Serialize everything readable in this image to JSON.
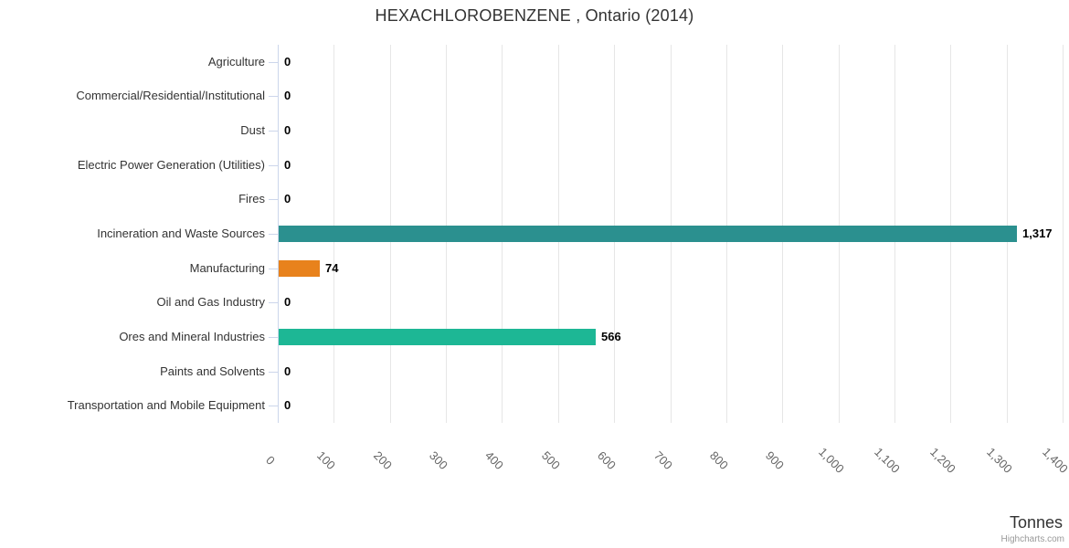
{
  "header": {
    "title": "HEXACHLOROBENZENE , Ontario (2014)"
  },
  "axis": {
    "title": "Tonnes"
  },
  "credits": {
    "label": "Highcharts.com"
  },
  "colors": {
    "teal": "#2b908f",
    "orange": "#e8821c",
    "green": "#1db795",
    "gridline": "#e6e6e6",
    "axis_line": "#ccd6eb",
    "category_label": "#333333",
    "tick_label": "#666666",
    "value_label": "#000000",
    "credits_text": "#999999"
  },
  "chart_data": {
    "type": "bar",
    "orientation": "horizontal",
    "title": "HEXACHLOROBENZENE , Ontario (2014)",
    "categories": [
      "Agriculture",
      "Commercial/Residential/Institutional",
      "Dust",
      "Electric Power Generation (Utilities)",
      "Fires",
      "Incineration and Waste Sources",
      "Manufacturing",
      "Oil and Gas Industry",
      "Ores and Mineral Industries",
      "Paints and Solvents",
      "Transportation and Mobile Equipment"
    ],
    "values": [
      0,
      0,
      0,
      0,
      0,
      1317,
      74,
      0,
      566,
      0,
      0
    ],
    "value_labels": [
      "0",
      "0",
      "0",
      "0",
      "0",
      "1,317",
      "74",
      "0",
      "566",
      "0",
      "0"
    ],
    "point_colors": [
      "#2b908f",
      "#2b908f",
      "#2b908f",
      "#2b908f",
      "#2b908f",
      "#2b908f",
      "#e8821c",
      "#2b908f",
      "#1db795",
      "#2b908f",
      "#2b908f"
    ],
    "xlabel": "Tonnes",
    "xlim": [
      0,
      1400
    ],
    "x_tick_interval": 100,
    "x_tick_labels": [
      "0",
      "100",
      "200",
      "300",
      "400",
      "500",
      "600",
      "700",
      "800",
      "900",
      "1,000",
      "1,100",
      "1,200",
      "1,300",
      "1,400"
    ],
    "grid": true,
    "legend": false
  }
}
